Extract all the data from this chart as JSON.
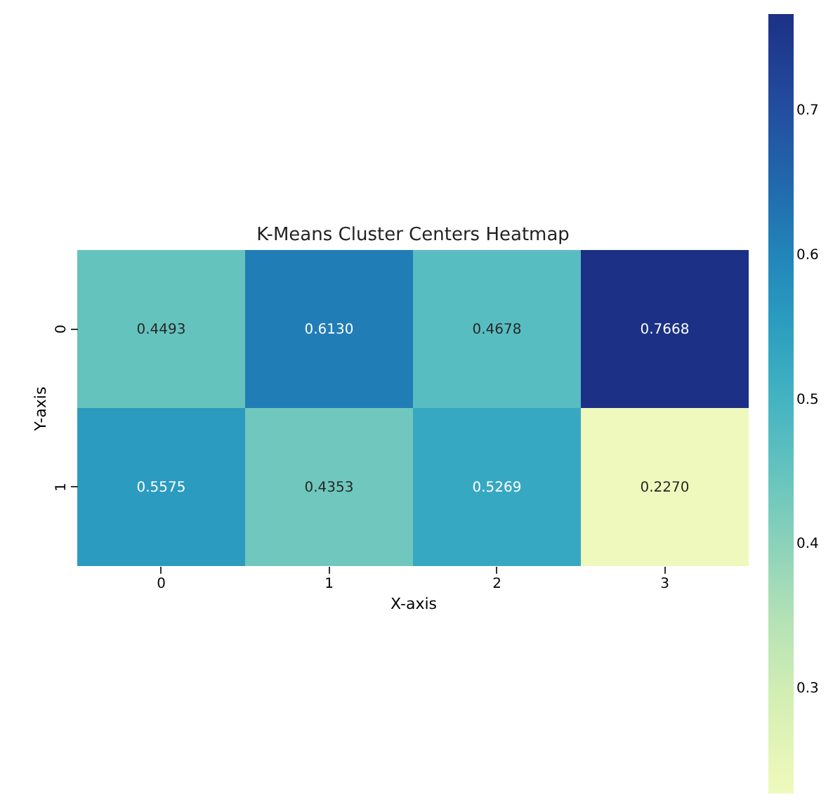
{
  "chart_data": {
    "type": "heatmap",
    "title": "K-Means Cluster Centers Heatmap",
    "xlabel": "X-axis",
    "ylabel": "Y-axis",
    "categories": [
      "0",
      "1",
      "2",
      "3"
    ],
    "y_categories": [
      "0",
      "1"
    ],
    "cells": [
      [
        0.4493,
        0.613,
        0.4678,
        0.7668
      ],
      [
        0.5575,
        0.4353,
        0.5269,
        0.227
      ]
    ],
    "cell_labels": [
      [
        "0.4493",
        "0.6130",
        "0.4678",
        "0.7668"
      ],
      [
        "0.5575",
        "0.4353",
        "0.5269",
        "0.2270"
      ]
    ],
    "clim": [
      0.227,
      0.7668
    ],
    "cticks": [
      0.3,
      0.4,
      0.5,
      0.6,
      0.7
    ]
  }
}
